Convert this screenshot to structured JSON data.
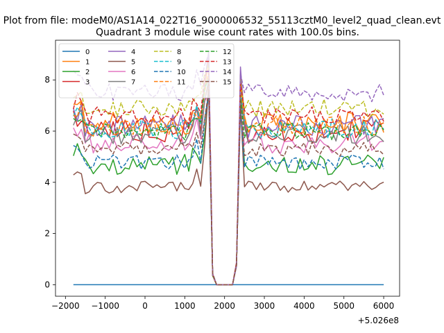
{
  "chart_data": {
    "type": "line",
    "suptitle": "Plot from file: modeM0/AS1A14_022T16_9000006532_55113cztM0_level2_quad_clean.evt",
    "title": "Quadrant 3 module wise count rates with 100.0s bins.",
    "xlabel": "",
    "ylabel": "",
    "x_offset_label": "+5.026e8",
    "xlim": [
      -2250,
      6400
    ],
    "ylim": [
      -0.45,
      9.55
    ],
    "xticks": [
      -2000,
      -1000,
      0,
      1000,
      2000,
      3000,
      4000,
      5000,
      6000
    ],
    "xtick_labels": [
      "−2000",
      "−1000",
      "0",
      "1000",
      "2000",
      "3000",
      "4000",
      "5000",
      "6000"
    ],
    "yticks": [
      0,
      2,
      4,
      6,
      8
    ],
    "ytick_labels": [
      "0",
      "2",
      "4",
      "6",
      "8"
    ],
    "grid": false,
    "legend_position": "top-left",
    "legend_columns": 4,
    "time_start": -1800,
    "time_step": 100,
    "n_bins": 79,
    "gap_bins": [
      36,
      40
    ],
    "series": [
      {
        "name": "0",
        "color": "#1f77b4",
        "dash": "solid",
        "mean": 0.0,
        "noise": 0.0,
        "peak": 0.0
      },
      {
        "name": "1",
        "color": "#ff7f0e",
        "dash": "solid",
        "mean": 6.3,
        "noise": 0.45,
        "peak": 8.9
      },
      {
        "name": "2",
        "color": "#2ca02c",
        "dash": "solid",
        "mean": 4.7,
        "noise": 0.4,
        "peak": 7.6
      },
      {
        "name": "3",
        "color": "#d62728",
        "dash": "solid",
        "mean": 6.0,
        "noise": 0.45,
        "peak": 7.9
      },
      {
        "name": "4",
        "color": "#9467bd",
        "dash": "solid",
        "mean": 6.2,
        "noise": 0.45,
        "peak": 9.1
      },
      {
        "name": "5",
        "color": "#8c564b",
        "dash": "solid",
        "mean": 3.8,
        "noise": 0.25,
        "peak": 7.8
      },
      {
        "name": "6",
        "color": "#e377c2",
        "dash": "solid",
        "mean": 5.5,
        "noise": 0.4,
        "peak": 7.4
      },
      {
        "name": "7",
        "color": "#7f7f7f",
        "dash": "solid",
        "mean": 5.9,
        "noise": 0.4,
        "peak": 8.0
      },
      {
        "name": "8",
        "color": "#bcbd22",
        "dash": "dashed",
        "mean": 6.9,
        "noise": 0.35,
        "peak": 8.6
      },
      {
        "name": "9",
        "color": "#17becf",
        "dash": "dashed",
        "mean": 6.1,
        "noise": 0.4,
        "peak": 8.2
      },
      {
        "name": "10",
        "color": "#1f77b4",
        "dash": "dashed",
        "mean": 4.8,
        "noise": 0.3,
        "peak": 7.5
      },
      {
        "name": "11",
        "color": "#ff7f0e",
        "dash": "dashed",
        "mean": 6.2,
        "noise": 0.4,
        "peak": 8.3
      },
      {
        "name": "12",
        "color": "#2ca02c",
        "dash": "dashed",
        "mean": 6.0,
        "noise": 0.35,
        "peak": 8.0
      },
      {
        "name": "13",
        "color": "#d62728",
        "dash": "dashed",
        "mean": 6.6,
        "noise": 0.35,
        "peak": 8.4
      },
      {
        "name": "14",
        "color": "#9467bd",
        "dash": "dashed",
        "mean": 7.5,
        "noise": 0.35,
        "peak": 9.0
      },
      {
        "name": "15",
        "color": "#8c564b",
        "dash": "dashed",
        "mean": 5.3,
        "noise": 0.3,
        "peak": 7.6
      }
    ]
  }
}
